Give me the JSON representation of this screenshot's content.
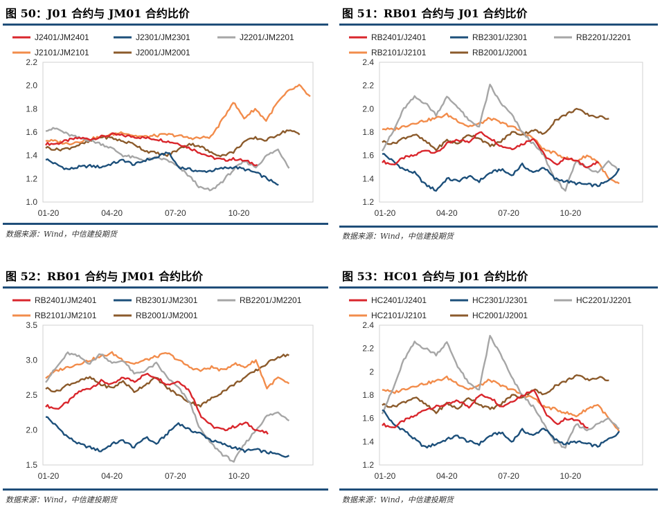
{
  "source_note": "数据来源：Wind，中信建投期货",
  "colors": {
    "s2401": "#d9262c",
    "s2301": "#1c4f7a",
    "s2201": "#a6a6a6",
    "s2101": "#f28c4b",
    "s2001": "#8b5a2b",
    "rule": "#1f4e79"
  },
  "chart_data": [
    {
      "type": "line",
      "title": "图 50：J01 合约与 JM01 合约比价",
      "x_ticks": [
        "01-20",
        "04-20",
        "07-20",
        "10-20"
      ],
      "ylim": [
        1.0,
        2.2
      ],
      "y_ticks": [
        "1.0",
        "1.2",
        "1.4",
        "1.6",
        "1.8",
        "2.0",
        "2.2"
      ],
      "series": [
        {
          "name": "J2401/JM2401",
          "key": "s2401",
          "values": [
            1.5,
            1.5,
            1.53,
            1.55,
            1.54,
            1.56,
            1.58,
            1.57,
            1.56,
            1.55,
            1.54,
            1.52,
            1.5,
            1.46,
            1.42,
            1.38,
            1.36,
            1.37,
            1.35,
            1.32
          ]
        },
        {
          "name": "J2301/JM2301",
          "key": "s2301",
          "values": [
            1.37,
            1.32,
            1.28,
            1.3,
            1.31,
            1.3,
            1.33,
            1.36,
            1.32,
            1.36,
            1.38,
            1.43,
            1.3,
            1.28,
            1.26,
            1.27,
            1.29,
            1.3,
            1.28,
            1.25,
            1.2,
            1.14
          ]
        },
        {
          "name": "J2201/JM2201",
          "key": "s2201",
          "values": [
            1.62,
            1.63,
            1.58,
            1.55,
            1.53,
            1.5,
            1.46,
            1.4,
            1.38,
            1.36,
            1.38,
            1.36,
            1.3,
            1.22,
            1.12,
            1.1,
            1.18,
            1.28,
            1.35,
            1.3,
            1.4,
            1.45,
            1.3
          ]
        },
        {
          "name": "J2101/JM2101",
          "key": "s2101",
          "values": [
            1.53,
            1.52,
            1.5,
            1.52,
            1.54,
            1.56,
            1.58,
            1.6,
            1.57,
            1.56,
            1.57,
            1.58,
            1.57,
            1.55,
            1.55,
            1.56,
            1.7,
            1.86,
            1.72,
            1.8,
            1.7,
            1.85,
            1.95,
            2.0,
            1.9
          ]
        },
        {
          "name": "J2001/JM2001",
          "key": "s2001",
          "values": [
            1.47,
            1.45,
            1.46,
            1.49,
            1.52,
            1.56,
            1.55,
            1.52,
            1.5,
            1.44,
            1.42,
            1.4,
            1.45,
            1.5,
            1.48,
            1.42,
            1.4,
            1.43,
            1.52,
            1.55,
            1.53,
            1.58,
            1.62,
            1.58
          ]
        }
      ]
    },
    {
      "type": "line",
      "title": "图 51：RB01 合约与 J01 合约比价",
      "x_ticks": [
        "01-20",
        "04-20",
        "07-20",
        "10-20"
      ],
      "ylim": [
        1.2,
        2.4
      ],
      "y_ticks": [
        "1.2",
        "1.4",
        "1.6",
        "1.8",
        "2.0",
        "2.2",
        "2.4"
      ],
      "series": [
        {
          "name": "RB2401/J2401",
          "key": "s2401",
          "values": [
            1.55,
            1.52,
            1.58,
            1.6,
            1.65,
            1.62,
            1.7,
            1.73,
            1.72,
            1.8,
            1.75,
            1.68,
            1.66,
            1.7,
            1.75,
            1.6,
            1.52,
            1.58,
            1.55,
            1.5,
            1.54
          ]
        },
        {
          "name": "RB2301/J2301",
          "key": "s2301",
          "values": [
            1.62,
            1.55,
            1.48,
            1.45,
            1.35,
            1.3,
            1.4,
            1.38,
            1.42,
            1.38,
            1.45,
            1.48,
            1.43,
            1.52,
            1.45,
            1.5,
            1.4,
            1.38,
            1.36,
            1.35,
            1.34,
            1.38,
            1.48
          ]
        },
        {
          "name": "RB2201/J2201",
          "key": "s2201",
          "values": [
            1.65,
            1.8,
            2.0,
            2.1,
            2.05,
            1.95,
            2.1,
            2.02,
            1.9,
            1.85,
            2.2,
            2.05,
            1.95,
            1.8,
            1.7,
            1.6,
            1.4,
            1.3,
            1.55,
            1.5,
            1.45,
            1.55,
            1.48
          ]
        },
        {
          "name": "RB2101/J2101",
          "key": "s2101",
          "values": [
            1.83,
            1.82,
            1.85,
            1.88,
            1.9,
            1.92,
            1.95,
            1.9,
            1.85,
            1.87,
            1.92,
            1.88,
            1.85,
            1.8,
            1.75,
            1.65,
            1.62,
            1.58,
            1.55,
            1.6,
            1.55,
            1.4,
            1.35
          ]
        },
        {
          "name": "RB2001/J2001",
          "key": "s2001",
          "values": [
            1.72,
            1.7,
            1.75,
            1.78,
            1.72,
            1.65,
            1.73,
            1.7,
            1.78,
            1.75,
            1.68,
            1.72,
            1.8,
            1.78,
            1.82,
            1.78,
            1.9,
            1.95,
            2.0,
            1.95,
            1.93,
            1.92
          ]
        }
      ]
    },
    {
      "type": "line",
      "title": "图 52：RB01 合约与 JM01 合约比价",
      "x_ticks": [
        "01-20",
        "04-20",
        "07-20",
        "10-20"
      ],
      "ylim": [
        1.5,
        3.5
      ],
      "y_ticks": [
        "1.5",
        "2.0",
        "2.5",
        "3.0",
        "3.5"
      ],
      "series": [
        {
          "name": "RB2401/JM2401",
          "key": "s2401",
          "values": [
            2.35,
            2.3,
            2.4,
            2.55,
            2.6,
            2.7,
            2.65,
            2.75,
            2.7,
            2.8,
            2.75,
            2.65,
            2.7,
            2.55,
            2.2,
            2.05,
            2.0,
            2.05,
            2.1,
            2.0,
            1.95
          ]
        },
        {
          "name": "RB2301/JM2301",
          "key": "s2301",
          "values": [
            2.2,
            2.05,
            1.9,
            1.8,
            1.75,
            1.7,
            1.8,
            1.85,
            1.75,
            1.9,
            1.8,
            1.95,
            2.1,
            2.0,
            1.95,
            1.85,
            1.8,
            1.75,
            1.7,
            1.72,
            1.68,
            1.65,
            1.62
          ]
        },
        {
          "name": "RB2201/JM2201",
          "key": "s2201",
          "values": [
            2.7,
            2.9,
            3.1,
            3.05,
            2.95,
            3.1,
            2.95,
            3.0,
            2.8,
            2.85,
            2.95,
            2.75,
            2.6,
            2.4,
            2.0,
            1.8,
            1.65,
            1.55,
            1.8,
            2.0,
            2.2,
            2.25,
            2.15
          ]
        },
        {
          "name": "RB2101/JM2101",
          "key": "s2101",
          "values": [
            2.75,
            2.85,
            2.9,
            2.95,
            3.0,
            3.05,
            3.1,
            3.0,
            2.95,
            3.0,
            3.05,
            3.1,
            3.0,
            2.9,
            2.85,
            2.9,
            2.85,
            2.95,
            2.9,
            3.0,
            2.6,
            2.75,
            2.65
          ]
        },
        {
          "name": "RB2001/JM2001",
          "key": "s2001",
          "values": [
            2.6,
            2.55,
            2.65,
            2.7,
            2.75,
            2.65,
            2.6,
            2.7,
            2.55,
            2.65,
            2.75,
            2.6,
            2.5,
            2.4,
            2.35,
            2.45,
            2.55,
            2.65,
            2.75,
            2.85,
            2.95,
            3.05,
            3.08
          ]
        }
      ]
    },
    {
      "type": "line",
      "title": "图 53：HC01 合约与 J01 合约比价",
      "x_ticks": [
        "01-20",
        "04-20",
        "07-20",
        "10-20"
      ],
      "ylim": [
        1.2,
        2.4
      ],
      "y_ticks": [
        "1.2",
        "1.4",
        "1.6",
        "1.8",
        "2",
        "2.2",
        "2.4"
      ],
      "series": [
        {
          "name": "HC2401/J2401",
          "key": "s2401",
          "values": [
            1.55,
            1.52,
            1.58,
            1.62,
            1.68,
            1.7,
            1.72,
            1.75,
            1.7,
            1.8,
            1.78,
            1.7,
            1.75,
            1.8,
            1.85,
            1.65,
            1.55,
            1.6,
            1.58,
            1.52
          ]
        },
        {
          "name": "HC2301/J2301",
          "key": "s2301",
          "values": [
            1.68,
            1.55,
            1.5,
            1.42,
            1.35,
            1.38,
            1.42,
            1.45,
            1.4,
            1.38,
            1.45,
            1.48,
            1.4,
            1.5,
            1.45,
            1.52,
            1.42,
            1.38,
            1.4,
            1.38,
            1.36,
            1.42,
            1.48
          ]
        },
        {
          "name": "HC2201/J2201",
          "key": "s2201",
          "values": [
            1.65,
            1.85,
            2.1,
            2.25,
            2.2,
            2.15,
            2.25,
            2.05,
            1.9,
            1.85,
            2.3,
            2.15,
            1.95,
            1.8,
            1.7,
            1.55,
            1.4,
            1.35,
            1.55,
            1.5,
            1.55,
            1.6,
            1.52
          ]
        },
        {
          "name": "HC2101/J2101",
          "key": "s2101",
          "values": [
            1.85,
            1.82,
            1.85,
            1.88,
            1.9,
            1.92,
            1.95,
            1.9,
            1.85,
            1.88,
            1.93,
            1.88,
            1.85,
            1.8,
            1.78,
            1.7,
            1.68,
            1.65,
            1.62,
            1.68,
            1.72,
            1.6,
            1.48
          ]
        },
        {
          "name": "HC2001/J2001",
          "key": "s2001",
          "values": [
            1.72,
            1.7,
            1.74,
            1.78,
            1.72,
            1.65,
            1.73,
            1.68,
            1.78,
            1.72,
            1.68,
            1.72,
            1.8,
            1.78,
            1.85,
            1.8,
            1.88,
            1.92,
            1.97,
            1.93,
            1.95,
            1.93
          ]
        }
      ]
    }
  ]
}
